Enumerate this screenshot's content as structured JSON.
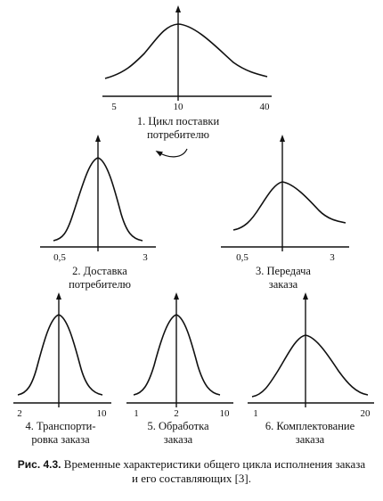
{
  "panels": [
    {
      "id": "p1",
      "label_lines": [
        "1. Цикл поставки",
        "потребителю"
      ],
      "ticks": [
        "5",
        "10",
        "40"
      ]
    },
    {
      "id": "p2",
      "label_lines": [
        "2. Доставка",
        "потребителю"
      ],
      "ticks": [
        "0,5",
        "3"
      ]
    },
    {
      "id": "p3",
      "label_lines": [
        "3. Передача",
        "заказа"
      ],
      "ticks": [
        "0,5",
        "3"
      ]
    },
    {
      "id": "p4",
      "label_lines": [
        "4. Транспорти-",
        "ровка заказа"
      ],
      "ticks": [
        "2",
        "10"
      ]
    },
    {
      "id": "p5",
      "label_lines": [
        "5. Обработка",
        "заказа"
      ],
      "ticks": [
        "1",
        "2",
        "10"
      ]
    },
    {
      "id": "p6",
      "label_lines": [
        "6. Комплектование",
        "заказа"
      ],
      "ticks": [
        "1",
        "20"
      ]
    }
  ],
  "caption": {
    "prefix": "Рис. 4.3.",
    "line1": "Временные характеристики общего цикла исполнения заказа",
    "line2": "и его составляющих [3]."
  }
}
